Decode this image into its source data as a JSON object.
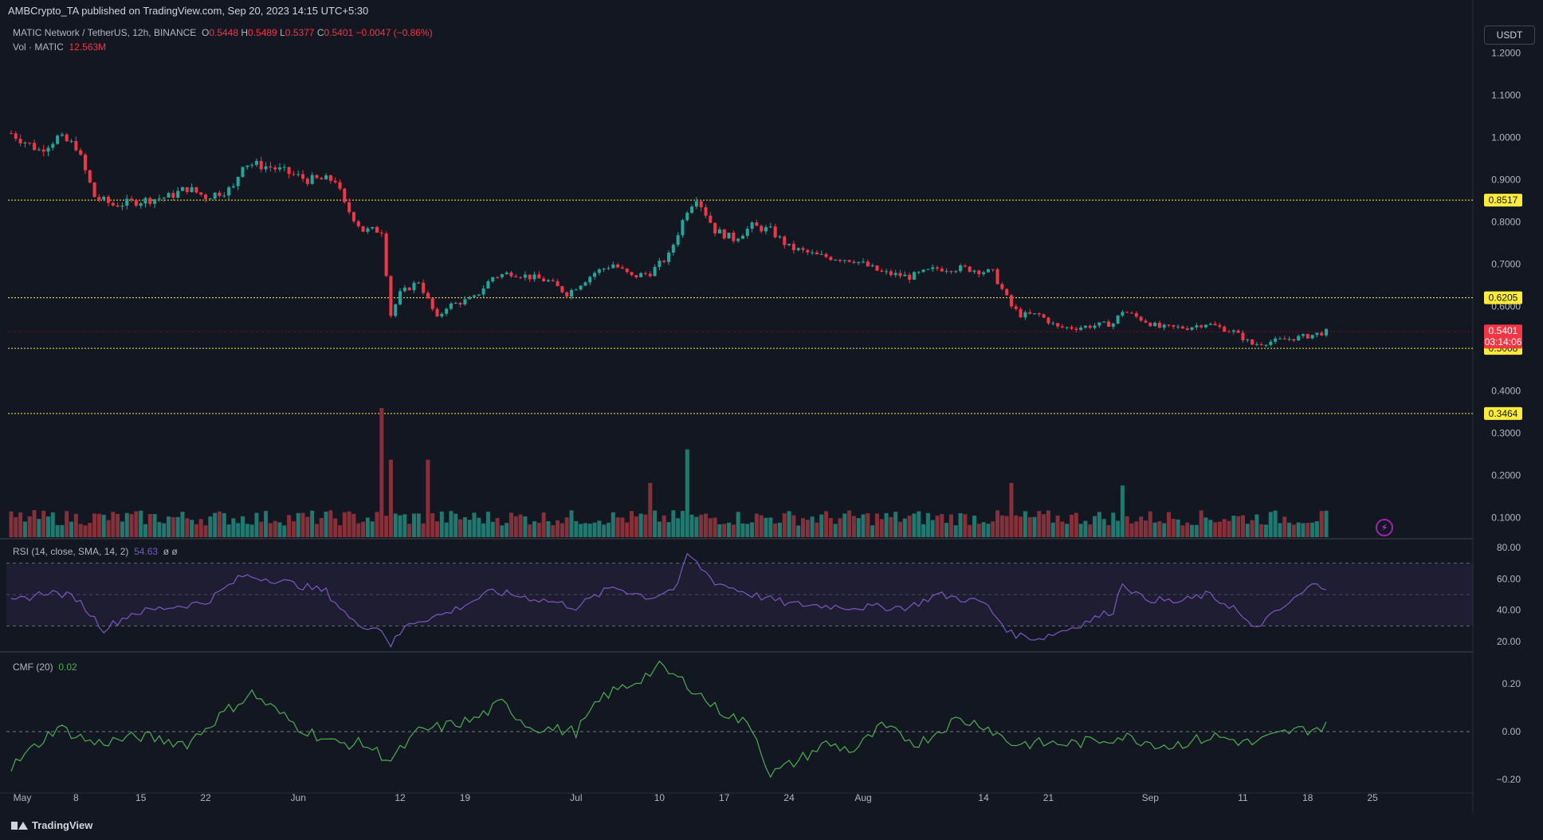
{
  "header": {
    "publisher": "AMBCrypto_TA published on TradingView.com, Sep 20, 2023 14:15 UTC+5:30",
    "symbol": "MATIC Network / TetherUS, 12h, BINANCE",
    "o_label": "O",
    "o": "0.5448",
    "h_label": "H",
    "h": "0.5489",
    "l_label": "L",
    "l": "0.5377",
    "c_label": "C",
    "c": "0.5401",
    "change": "−0.0047 (−0.86%)",
    "vol_label": "Vol · MATIC",
    "vol_value": "12.563M"
  },
  "currency": "USDT",
  "footer": {
    "brand": "TradingView"
  },
  "rsi": {
    "label": "RSI (14, close, SMA, 14, 2)",
    "value": "54.63",
    "extra": "ø ø"
  },
  "cmf": {
    "label": "CMF (20)",
    "value": "0.02"
  },
  "colors": {
    "up": "#26a69a",
    "down": "#f23645",
    "level": "#ffeb3b",
    "rsi": "#7e57c2",
    "cmf": "#4caf50",
    "bg": "#131722"
  },
  "chart_data": [
    {
      "type": "candlestick",
      "title": "MATIC Network / TetherUS, 12h, BINANCE",
      "x_tick_labels": [
        "May",
        "8",
        "15",
        "22",
        "Jun",
        "12",
        "19",
        "Jul",
        "10",
        "17",
        "24",
        "Aug",
        "14",
        "21",
        "Sep",
        "11",
        "18",
        "25"
      ],
      "y_tick_labels": [
        "1.2000",
        "1.1000",
        "1.0000",
        "0.9000",
        "0.8000",
        "0.7000",
        "0.6000",
        "0.5000",
        "0.4000",
        "0.3000",
        "0.2000",
        "0.1000"
      ],
      "ylim": [
        0.05,
        1.25
      ],
      "levels": [
        {
          "label": "0.8517",
          "value": 0.8517
        },
        {
          "label": "0.6205",
          "value": 0.6205
        },
        {
          "label": "0.5008",
          "value": 0.5008
        },
        {
          "label": "0.3464",
          "value": 0.3464
        }
      ],
      "last_price": {
        "label": "0.5401",
        "value": 0.5401,
        "countdown": "03:14:06"
      },
      "close_series": {
        "description": "approximate 12h closes, May 1 to Sep 20 2023",
        "anchors": [
          [
            "2023-05-01",
            1.01
          ],
          [
            "2023-05-04",
            0.97
          ],
          [
            "2023-05-06",
            1.0
          ],
          [
            "2023-05-08",
            0.98
          ],
          [
            "2023-05-10",
            0.86
          ],
          [
            "2023-05-12",
            0.84
          ],
          [
            "2023-05-15",
            0.85
          ],
          [
            "2023-05-18",
            0.86
          ],
          [
            "2023-05-20",
            0.88
          ],
          [
            "2023-05-22",
            0.86
          ],
          [
            "2023-05-25",
            0.88
          ],
          [
            "2023-05-26",
            0.94
          ],
          [
            "2023-05-29",
            0.93
          ],
          [
            "2023-06-02",
            0.9
          ],
          [
            "2023-06-05",
            0.9
          ],
          [
            "2023-06-06",
            0.84
          ],
          [
            "2023-06-08",
            0.78
          ],
          [
            "2023-06-10",
            0.78
          ],
          [
            "2023-06-11",
            0.58
          ],
          [
            "2023-06-12",
            0.63
          ],
          [
            "2023-06-14",
            0.66
          ],
          [
            "2023-06-16",
            0.57
          ],
          [
            "2023-06-17",
            0.6
          ],
          [
            "2023-06-20",
            0.62
          ],
          [
            "2023-06-22",
            0.67
          ],
          [
            "2023-06-24",
            0.68
          ],
          [
            "2023-06-28",
            0.66
          ],
          [
            "2023-06-30",
            0.63
          ],
          [
            "2023-07-03",
            0.68
          ],
          [
            "2023-07-05",
            0.7
          ],
          [
            "2023-07-07",
            0.67
          ],
          [
            "2023-07-09",
            0.68
          ],
          [
            "2023-07-11",
            0.72
          ],
          [
            "2023-07-13",
            0.83
          ],
          [
            "2023-07-14",
            0.86
          ],
          [
            "2023-07-16",
            0.78
          ],
          [
            "2023-07-18",
            0.76
          ],
          [
            "2023-07-20",
            0.79
          ],
          [
            "2023-07-22",
            0.78
          ],
          [
            "2023-07-24",
            0.74
          ],
          [
            "2023-07-27",
            0.72
          ],
          [
            "2023-07-31",
            0.71
          ],
          [
            "2023-08-03",
            0.68
          ],
          [
            "2023-08-06",
            0.67
          ],
          [
            "2023-08-09",
            0.69
          ],
          [
            "2023-08-12",
            0.69
          ],
          [
            "2023-08-15",
            0.68
          ],
          [
            "2023-08-17",
            0.6
          ],
          [
            "2023-08-18",
            0.58
          ],
          [
            "2023-08-20",
            0.58
          ],
          [
            "2023-08-22",
            0.55
          ],
          [
            "2023-08-24",
            0.55
          ],
          [
            "2023-08-28",
            0.56
          ],
          [
            "2023-08-29",
            0.59
          ],
          [
            "2023-08-31",
            0.57
          ],
          [
            "2023-09-02",
            0.55
          ],
          [
            "2023-09-05",
            0.55
          ],
          [
            "2023-09-07",
            0.56
          ],
          [
            "2023-09-10",
            0.54
          ],
          [
            "2023-09-12",
            0.51
          ],
          [
            "2023-09-15",
            0.52
          ],
          [
            "2023-09-18",
            0.53
          ],
          [
            "2023-09-20",
            0.54
          ]
        ]
      }
    },
    {
      "type": "bar",
      "title": "Vol · MATIC",
      "series": [
        {
          "name": "Vol · MATIC",
          "current": "12.563M"
        }
      ],
      "spikes": [
        [
          "2023-06-10",
          1.0
        ],
        [
          "2023-06-11",
          0.6
        ],
        [
          "2023-06-15",
          0.6
        ],
        [
          "2023-07-13",
          0.68
        ],
        [
          "2023-07-09",
          0.42
        ],
        [
          "2023-08-17",
          0.42
        ],
        [
          "2023-08-29",
          0.4
        ]
      ]
    },
    {
      "type": "line",
      "title": "RSI (14, close, SMA, 14, 2)",
      "series": [
        {
          "name": "RSI",
          "last": 54.63
        }
      ],
      "y_tick_labels": [
        "80.00",
        "60.00",
        "40.00",
        "20.00"
      ],
      "ylim": [
        15,
        82
      ],
      "bands": [
        70,
        50,
        30
      ],
      "anchors": [
        [
          "2023-05-01",
          45
        ],
        [
          "2023-05-05",
          52
        ],
        [
          "2023-05-08",
          48
        ],
        [
          "2023-05-11",
          28
        ],
        [
          "2023-05-14",
          38
        ],
        [
          "2023-05-18",
          42
        ],
        [
          "2023-05-22",
          45
        ],
        [
          "2023-05-26",
          62
        ],
        [
          "2023-05-29",
          60
        ],
        [
          "2023-06-04",
          52
        ],
        [
          "2023-06-07",
          32
        ],
        [
          "2023-06-10",
          28
        ],
        [
          "2023-06-11",
          18
        ],
        [
          "2023-06-13",
          32
        ],
        [
          "2023-06-17",
          38
        ],
        [
          "2023-06-22",
          52
        ],
        [
          "2023-06-28",
          46
        ],
        [
          "2023-07-01",
          42
        ],
        [
          "2023-07-05",
          55
        ],
        [
          "2023-07-09",
          48
        ],
        [
          "2023-07-12",
          55
        ],
        [
          "2023-07-13",
          76
        ],
        [
          "2023-07-16",
          58
        ],
        [
          "2023-07-20",
          50
        ],
        [
          "2023-07-24",
          44
        ],
        [
          "2023-07-31",
          42
        ],
        [
          "2023-08-06",
          42
        ],
        [
          "2023-08-09",
          50
        ],
        [
          "2023-08-14",
          45
        ],
        [
          "2023-08-17",
          25
        ],
        [
          "2023-08-20",
          22
        ],
        [
          "2023-08-24",
          30
        ],
        [
          "2023-08-28",
          40
        ],
        [
          "2023-08-29",
          58
        ],
        [
          "2023-08-31",
          48
        ],
        [
          "2023-09-04",
          45
        ],
        [
          "2023-09-07",
          50
        ],
        [
          "2023-09-10",
          42
        ],
        [
          "2023-09-12",
          28
        ],
        [
          "2023-09-15",
          40
        ],
        [
          "2023-09-19",
          58
        ],
        [
          "2023-09-20",
          54.63
        ]
      ]
    },
    {
      "type": "line",
      "title": "CMF (20)",
      "series": [
        {
          "name": "CMF",
          "last": 0.02
        }
      ],
      "y_tick_labels": [
        "0.20",
        "0.00",
        "−0.20"
      ],
      "ylim": [
        -0.25,
        0.3
      ],
      "anchors": [
        [
          "2023-05-01",
          -0.15
        ],
        [
          "2023-05-06",
          0.02
        ],
        [
          "2023-05-10",
          -0.05
        ],
        [
          "2023-05-15",
          -0.02
        ],
        [
          "2023-05-20",
          -0.05
        ],
        [
          "2023-05-24",
          0.08
        ],
        [
          "2023-05-27",
          0.16
        ],
        [
          "2023-06-01",
          0.02
        ],
        [
          "2023-06-05",
          -0.05
        ],
        [
          "2023-06-08",
          -0.05
        ],
        [
          "2023-06-11",
          -0.12
        ],
        [
          "2023-06-14",
          0.0
        ],
        [
          "2023-06-20",
          0.05
        ],
        [
          "2023-06-23",
          0.12
        ],
        [
          "2023-06-26",
          0.02
        ],
        [
          "2023-07-01",
          0.0
        ],
        [
          "2023-07-04",
          0.15
        ],
        [
          "2023-07-07",
          0.2
        ],
        [
          "2023-07-10",
          0.27
        ],
        [
          "2023-07-13",
          0.2
        ],
        [
          "2023-07-16",
          0.1
        ],
        [
          "2023-07-20",
          0.02
        ],
        [
          "2023-07-22",
          -0.18
        ],
        [
          "2023-07-25",
          -0.12
        ],
        [
          "2023-07-28",
          -0.05
        ],
        [
          "2023-07-31",
          -0.08
        ],
        [
          "2023-08-03",
          0.02
        ],
        [
          "2023-08-07",
          -0.05
        ],
        [
          "2023-08-11",
          0.05
        ],
        [
          "2023-08-14",
          0.03
        ],
        [
          "2023-08-17",
          -0.05
        ],
        [
          "2023-08-20",
          -0.05
        ],
        [
          "2023-08-24",
          -0.05
        ],
        [
          "2023-08-29",
          -0.02
        ],
        [
          "2023-09-03",
          -0.06
        ],
        [
          "2023-09-08",
          -0.02
        ],
        [
          "2023-09-12",
          -0.05
        ],
        [
          "2023-09-16",
          0.0
        ],
        [
          "2023-09-20",
          0.02
        ]
      ]
    }
  ]
}
